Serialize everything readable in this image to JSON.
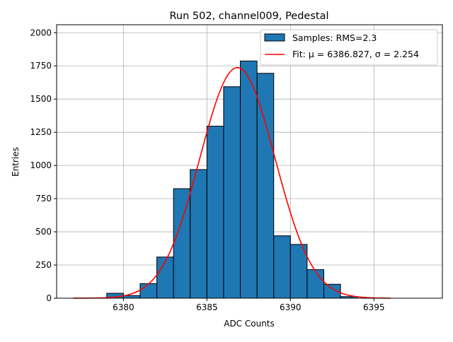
{
  "chart_data": {
    "type": "bar",
    "title": "Run 502, channel009, Pedestal",
    "xlabel": "ADC Counts",
    "ylabel": "Entries",
    "xlim": [
      6376.0,
      6399.1
    ],
    "ylim": [
      0,
      2060
    ],
    "grid": true,
    "legend_placement": "top-right",
    "xticks": [
      6380,
      6385,
      6390,
      6395
    ],
    "yticks": [
      0,
      250,
      500,
      750,
      1000,
      1250,
      1500,
      1750,
      2000
    ],
    "ytick_labels": [
      "0",
      "250",
      "500",
      "750",
      "1000",
      "1250",
      "1500",
      "1750",
      "2000"
    ],
    "histogram": {
      "name": "Samples: RMS=2.3",
      "bin_edges": [
        6379,
        6380,
        6381,
        6382,
        6383,
        6384,
        6385,
        6386,
        6387,
        6388,
        6389,
        6390,
        6391,
        6392,
        6393,
        6394
      ],
      "counts": [
        37,
        20,
        110,
        310,
        825,
        969,
        1296,
        1593,
        1787,
        1694,
        470,
        405,
        215,
        105,
        12
      ],
      "color": "#1f77b4",
      "edgecolor": "#000000"
    },
    "fit": {
      "name": "Fit: μ = 6386.827, σ = 2.254",
      "mu": 6386.827,
      "sigma": 2.254,
      "amplitude": 1737,
      "x_range": [
        6377,
        6396
      ],
      "color": "#ff0000"
    }
  }
}
